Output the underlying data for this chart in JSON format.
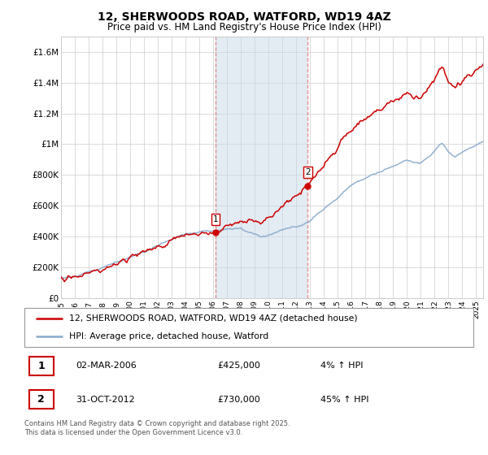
{
  "title": "12, SHERWOODS ROAD, WATFORD, WD19 4AZ",
  "subtitle": "Price paid vs. HM Land Registry's House Price Index (HPI)",
  "ylabel_ticks": [
    "£0",
    "£200K",
    "£400K",
    "£600K",
    "£800K",
    "£1M",
    "£1.2M",
    "£1.4M",
    "£1.6M"
  ],
  "ytick_values": [
    0,
    200000,
    400000,
    600000,
    800000,
    1000000,
    1200000,
    1400000,
    1600000
  ],
  "ylim": [
    0,
    1700000
  ],
  "xlim_start": 1995.0,
  "xlim_end": 2025.5,
  "purchase1_date": 2006.17,
  "purchase1_price": 425000,
  "purchase2_date": 2012.83,
  "purchase2_price": 730000,
  "red_color": "#cc0000",
  "blue_color": "#88aacc",
  "vline_color": "#dd5555",
  "span_color": "#c8d8e8",
  "grid_color": "#cccccc",
  "legend_text1": "12, SHERWOODS ROAD, WATFORD, WD19 4AZ (detached house)",
  "legend_text2": "HPI: Average price, detached house, Watford",
  "transaction1": [
    "1",
    "02-MAR-2006",
    "£425,000",
    "4% ↑ HPI"
  ],
  "transaction2": [
    "2",
    "31-OCT-2012",
    "£730,000",
    "45% ↑ HPI"
  ],
  "footnote": "Contains HM Land Registry data © Crown copyright and database right 2025.\nThis data is licensed under the Open Government Licence v3.0."
}
